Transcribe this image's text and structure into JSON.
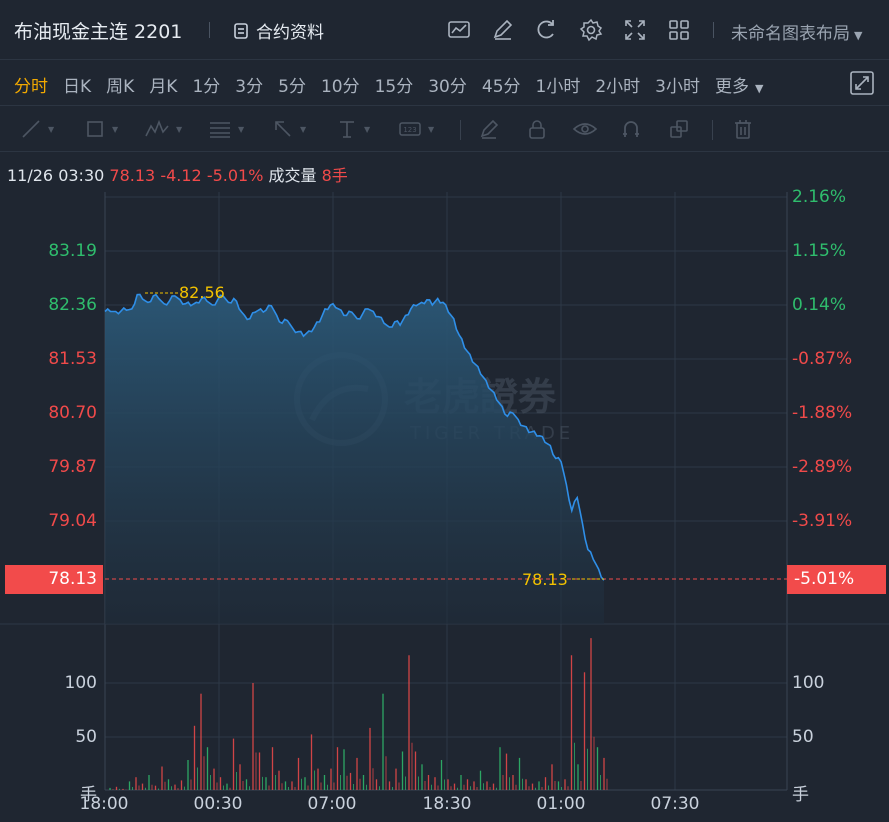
{
  "header": {
    "title": "布油现金主连 2201",
    "contract_label": "合约资料",
    "icons": [
      "chart-icon",
      "edit-icon",
      "refresh-icon",
      "settings-icon",
      "fullscreen-icon",
      "grid-icon"
    ],
    "layout_label": "未命名图表布局"
  },
  "timeframes": [
    "分时",
    "日K",
    "周K",
    "月K",
    "1分",
    "3分",
    "5分",
    "10分",
    "15分",
    "30分",
    "45分",
    "1小时",
    "2小时",
    "3小时"
  ],
  "active_timeframe": "分时",
  "more_label": "更多",
  "draw_tools": [
    "trendline-icon",
    "rectangle-icon",
    "wave-icon",
    "fibonacci-icon",
    "arrow-icon",
    "text-icon",
    "price-label-icon",
    "brush-icon",
    "lock-icon",
    "eye-icon",
    "magnet-icon",
    "layers-icon",
    "trash-icon"
  ],
  "info": {
    "datetime": "11/26 03:30",
    "price": "78.13",
    "change": "-4.12",
    "change_pct": "-5.01%",
    "volume_label": "成交量",
    "volume": "8手"
  },
  "colors": {
    "up": "#2fbd6d",
    "down": "#f04a4a",
    "line": "#2f8fe8",
    "marker": "#f2c200",
    "active": "#f2a900"
  },
  "watermark": {
    "cn": "老虎證券",
    "en": "TIGER TRADE"
  },
  "chart_data": {
    "type": "area",
    "price_axis": [
      "83.19",
      "82.36",
      "81.53",
      "80.70",
      "79.87",
      "79.04"
    ],
    "pct_axis": [
      "2.16%",
      "1.15%",
      "0.14%",
      "-0.87%",
      "-1.88%",
      "-2.89%",
      "-3.91%"
    ],
    "current_price": "78.13",
    "current_pct": "-5.01%",
    "high_marker": "82.56",
    "low_marker": "78.13",
    "x_labels": [
      "18:00",
      "00:30",
      "07:00",
      "18:30",
      "01:00",
      "07:30"
    ],
    "volume_axis": [
      "100",
      "50",
      "手"
    ],
    "price_series": [
      82.26,
      82.26,
      82.26,
      82.27,
      82.28,
      82.3,
      82.52,
      82.45,
      82.4,
      82.5,
      82.46,
      82.38,
      82.42,
      82.5,
      82.44,
      82.38,
      82.35,
      82.4,
      82.46,
      82.42,
      82.36,
      82.44,
      82.5,
      82.4,
      82.46,
      82.3,
      82.2,
      82.15,
      82.25,
      82.3,
      82.28,
      82.35,
      82.2,
      82.08,
      82.12,
      82.0,
      81.95,
      81.88,
      81.96,
      82.02,
      82.1,
      82.3,
      82.36,
      82.32,
      82.28,
      82.2,
      82.25,
      82.15,
      82.22,
      82.3,
      82.26,
      82.18,
      82.08,
      82.02,
      82.1,
      82.05,
      82.2,
      82.3,
      82.35,
      82.4,
      82.44,
      82.36,
      82.46,
      82.4,
      82.25,
      82.15,
      81.9,
      81.7,
      81.6,
      81.45,
      81.3,
      81.2,
      81.05,
      80.9,
      80.8,
      80.65,
      80.7,
      80.6,
      80.5,
      80.4,
      80.42,
      80.35,
      80.25,
      80.2,
      80.0,
      79.95,
      79.6,
      79.2,
      79.4,
      79.0,
      78.6,
      78.45,
      78.3,
      78.13
    ],
    "volume_series": [
      2,
      3,
      1,
      8,
      12,
      6,
      14,
      4,
      22,
      10,
      5,
      9,
      28,
      60,
      90,
      40,
      20,
      12,
      6,
      48,
      24,
      10,
      100,
      35,
      12,
      40,
      18,
      8,
      8,
      30,
      12,
      52,
      20,
      14,
      20,
      40,
      38,
      16,
      30,
      14,
      58,
      10,
      90,
      8,
      20,
      36,
      126,
      36,
      24,
      14,
      12,
      28,
      10,
      6,
      14,
      10,
      8,
      18,
      8,
      6,
      40,
      34,
      14,
      30,
      10,
      6,
      8,
      12,
      24,
      8,
      10,
      126,
      24,
      110,
      142,
      40,
      30
    ],
    "grid": true
  }
}
